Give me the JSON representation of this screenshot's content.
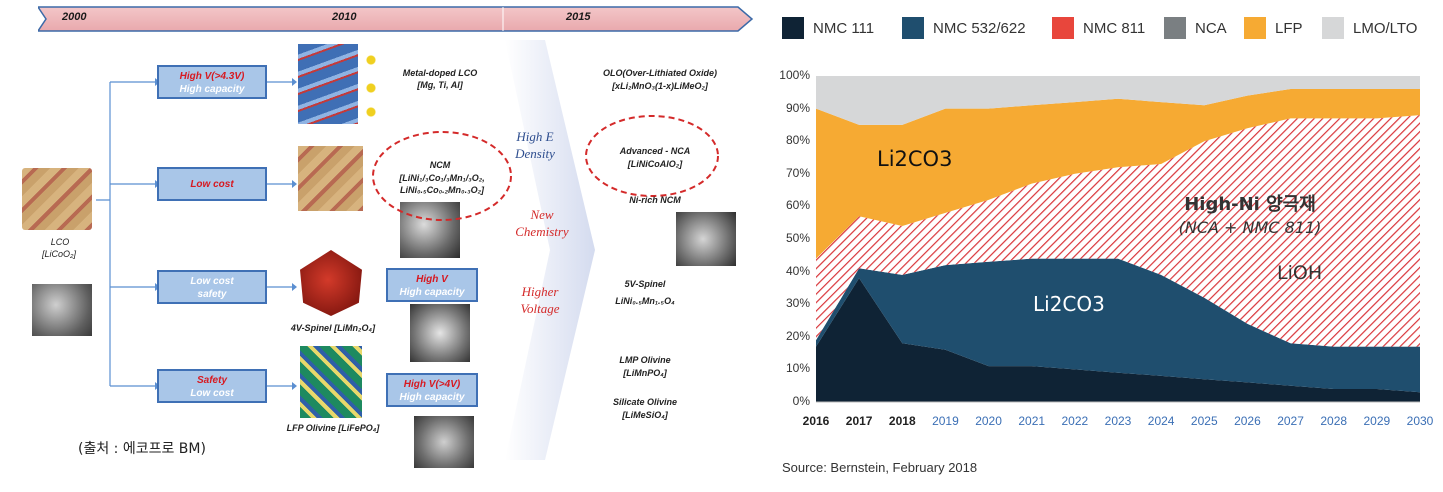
{
  "timeline": {
    "years": [
      "2000",
      "2010",
      "2015"
    ]
  },
  "left": {
    "lco_label": "LCO",
    "lco_formula": "[LiCoO₂]",
    "categories": [
      {
        "line1": "High V(>4.3V)",
        "line2": "High capacity"
      },
      {
        "line1": "Low cost",
        "line2": ""
      },
      {
        "line1": "Low cost",
        "line2": "safety"
      },
      {
        "line1": "Safety",
        "line2": "Low cost"
      }
    ],
    "materials": {
      "metal_doped": "Metal-doped LCO",
      "metal_doped_sub": "[Mg, Ti, Al]",
      "ncm": "NCM",
      "ncm_f1": "[LiNi₁/₃Co₁/₃Mn₁/₃O₂,",
      "ncm_f2": "LiNi₀.₅Co₀.₂Mn₀.₃O₂]",
      "spinel4v": "4V-Spinel [LiMn₂O₄]",
      "lfp": "LFP Olivine [LiFePO₄]"
    },
    "high_v_box": {
      "line1": "High V",
      "line2": "High capacity"
    },
    "high_v4_box": {
      "line1": "High V(>4V)",
      "line2": "High capacity"
    },
    "arrow_labels": {
      "high_e": "High E\nDensity",
      "new_chem": "New\nChemistry",
      "higher_v": "Higher\nVoltage"
    },
    "right_materials": {
      "olo": "OLO(Over-Lithiated Oxide)",
      "olo_f": "[xLi₂MnO₃(1-x)LiMeO₂]",
      "nca": "Advanced - NCA",
      "nca_f": "[LiNiCoAlO₂]",
      "ni_ncm": "Ni-rich NCM",
      "spinel5v": "5V-Spinel",
      "spinel5v_f": "LiNi₀.₅Mn₁.₅O₄",
      "lmp": "LMP Olivine",
      "lmp_f": "[LiMnPO₄]",
      "silicate": "Silicate Olivine",
      "silicate_f": "[LiMeSiO₄]"
    },
    "source": "(출처 : 에코프로 BM)"
  },
  "colors": {
    "nmc111": "#0f2335",
    "nmc532": "#1f4e6e",
    "nmc811": "#e8463c",
    "nca": "#7a7f82",
    "lfp": "#f6aa33",
    "lmo": "#d6d7d8"
  },
  "chart_data": {
    "type": "area",
    "stacked": true,
    "x": [
      "2016",
      "2017",
      "2018",
      "2019",
      "2020",
      "2021",
      "2022",
      "2023",
      "2024",
      "2025",
      "2026",
      "2027",
      "2028",
      "2029",
      "2030"
    ],
    "series": [
      {
        "name": "NMC 111",
        "values": [
          17,
          38,
          18,
          16,
          11,
          11,
          10,
          9,
          8,
          7,
          6,
          5,
          4,
          4,
          3
        ]
      },
      {
        "name": "NMC 532/622",
        "values": [
          2,
          3,
          21,
          26,
          32,
          33,
          34,
          35,
          31,
          25,
          18,
          13,
          13,
          13,
          14
        ]
      },
      {
        "name": "NMC 811",
        "values": [
          25,
          16,
          15,
          16,
          19,
          23,
          26,
          28,
          34,
          48,
          60,
          69,
          70,
          70,
          71
        ]
      },
      {
        "name": "NCA",
        "values": [
          0,
          0,
          0,
          0,
          0,
          0,
          0,
          0,
          0,
          0,
          0,
          0,
          0,
          0,
          0
        ]
      },
      {
        "name": "LFP",
        "values": [
          46,
          28,
          31,
          32,
          28,
          24,
          22,
          21,
          19,
          11,
          10,
          9,
          9,
          9,
          8
        ]
      },
      {
        "name": "LMO/LTO",
        "values": [
          10,
          15,
          15,
          10,
          10,
          9,
          8,
          7,
          8,
          9,
          6,
          4,
          4,
          4,
          4
        ]
      }
    ],
    "yticks": [
      "0%",
      "10%",
      "20%",
      "30%",
      "40%",
      "50%",
      "60%",
      "70%",
      "80%",
      "90%",
      "100%"
    ],
    "ylim": [
      0,
      100
    ],
    "annotations": {
      "li2co3_top": "Li2CO3",
      "highni": "High-Ni 양극재",
      "highni_sub": "(NCA + NMC 811)",
      "lioh": "LiOH",
      "li2co3_mid": "Li2CO3"
    },
    "source": "Source: Bernstein, February 2018"
  }
}
